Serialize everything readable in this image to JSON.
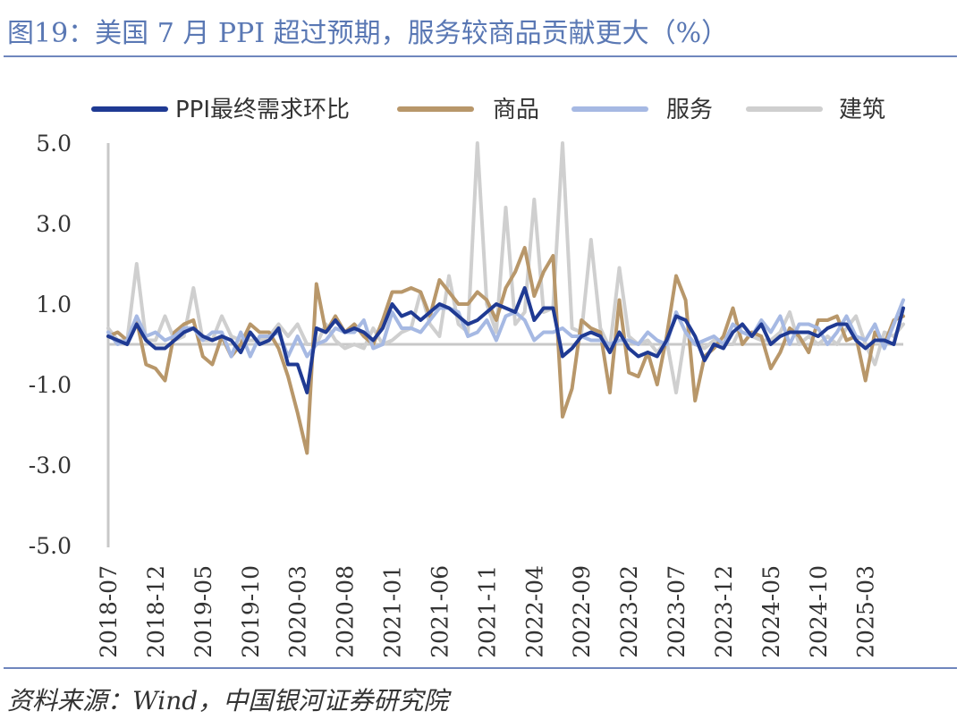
{
  "title": "图19：美国 7 月 PPI 超过预期，服务较商品贡献更大（%）",
  "source": "资料来源：Wind，中国银河证券研究院",
  "chart_data": {
    "type": "line",
    "title": "图19：美国 7 月 PPI 超过预期，服务较商品贡献更大（%）",
    "ylim": [
      -5,
      5
    ],
    "yticks": [
      5,
      3,
      1,
      -1,
      -3,
      -5
    ],
    "ytick_labels": [
      "5.0",
      "3.0",
      "1.0",
      "-1.0",
      "-3.0",
      "-5.0"
    ],
    "xtick_labels": [
      "2018-07",
      "2018-12",
      "2019-05",
      "2019-10",
      "2020-03",
      "2020-08",
      "2021-01",
      "2021-06",
      "2021-11",
      "2022-04",
      "2022-09",
      "2023-02",
      "2023-07",
      "2023-12",
      "2024-05",
      "2024-10",
      "2025-03"
    ],
    "legend_position": "top",
    "grid": false,
    "x": [
      "2018-07",
      "2018-08",
      "2018-09",
      "2018-10",
      "2018-11",
      "2018-12",
      "2019-01",
      "2019-02",
      "2019-03",
      "2019-04",
      "2019-05",
      "2019-06",
      "2019-07",
      "2019-08",
      "2019-09",
      "2019-10",
      "2019-11",
      "2019-12",
      "2020-01",
      "2020-02",
      "2020-03",
      "2020-04",
      "2020-05",
      "2020-06",
      "2020-07",
      "2020-08",
      "2020-09",
      "2020-10",
      "2020-11",
      "2020-12",
      "2021-01",
      "2021-02",
      "2021-03",
      "2021-04",
      "2021-05",
      "2021-06",
      "2021-07",
      "2021-08",
      "2021-09",
      "2021-10",
      "2021-11",
      "2021-12",
      "2022-01",
      "2022-02",
      "2022-03",
      "2022-04",
      "2022-05",
      "2022-06",
      "2022-07",
      "2022-08",
      "2022-09",
      "2022-10",
      "2022-11",
      "2022-12",
      "2023-01",
      "2023-02",
      "2023-03",
      "2023-04",
      "2023-05",
      "2023-06",
      "2023-07",
      "2023-08",
      "2023-09",
      "2023-10",
      "2023-11",
      "2023-12",
      "2024-01",
      "2024-02",
      "2024-03",
      "2024-04",
      "2024-05",
      "2024-06",
      "2024-07",
      "2024-08",
      "2024-09",
      "2024-10",
      "2024-11",
      "2024-12",
      "2025-01",
      "2025-02",
      "2025-03",
      "2025-04",
      "2025-05",
      "2025-06",
      "2025-07"
    ],
    "series": [
      {
        "name": "PPI最终需求环比",
        "color": "#1f3a93",
        "width": 4,
        "values": [
          0.2,
          0.1,
          0.0,
          0.5,
          0.1,
          -0.1,
          -0.1,
          0.1,
          0.3,
          0.4,
          0.2,
          0.1,
          0.2,
          0.1,
          -0.2,
          0.3,
          0.0,
          0.1,
          0.4,
          -0.5,
          -0.5,
          -1.2,
          0.4,
          0.3,
          0.6,
          0.3,
          0.4,
          0.3,
          0.1,
          0.4,
          1.0,
          0.7,
          0.8,
          0.6,
          0.8,
          1.0,
          0.9,
          0.7,
          0.5,
          0.6,
          0.8,
          1.0,
          0.9,
          0.8,
          1.4,
          0.6,
          0.9,
          0.9,
          -0.3,
          -0.1,
          0.2,
          0.3,
          0.2,
          -0.2,
          0.3,
          -0.1,
          -0.3,
          -0.2,
          -0.3,
          0.1,
          0.7,
          0.6,
          0.2,
          -0.4,
          0.0,
          -0.1,
          0.3,
          0.5,
          0.2,
          0.5,
          0.0,
          0.2,
          0.3,
          0.3,
          0.3,
          0.2,
          0.4,
          0.5,
          0.5,
          0.1,
          -0.1,
          0.1,
          0.1,
          0.0,
          0.9
        ]
      },
      {
        "name": "商品",
        "color": "#b8976a",
        "width": 4,
        "values": [
          0.2,
          0.3,
          0.1,
          0.6,
          -0.5,
          -0.6,
          -0.9,
          0.3,
          0.5,
          0.6,
          -0.3,
          -0.5,
          0.2,
          -0.3,
          0.0,
          0.5,
          0.3,
          0.3,
          -0.1,
          -0.8,
          -1.7,
          -2.7,
          1.5,
          0.3,
          0.7,
          0.3,
          0.5,
          0.2,
          0.0,
          0.6,
          1.3,
          1.3,
          1.4,
          1.3,
          0.7,
          1.6,
          1.3,
          1.0,
          1.0,
          1.3,
          1.1,
          0.6,
          1.4,
          1.8,
          2.4,
          1.2,
          1.8,
          2.2,
          -1.8,
          -1.1,
          0.6,
          0.4,
          0.3,
          -1.2,
          1.1,
          -0.7,
          -0.8,
          -0.2,
          -1.0,
          0.2,
          1.7,
          1.1,
          -1.4,
          -0.3,
          -0.1,
          0.2,
          0.9,
          0.0,
          0.3,
          0.2,
          -0.6,
          -0.2,
          0.4,
          0.2,
          -0.2,
          0.6,
          0.6,
          0.7,
          0.1,
          0.2,
          -0.9,
          0.3,
          0.0,
          0.6,
          0.7
        ]
      },
      {
        "name": "服务",
        "color": "#a6b9e3",
        "width": 4,
        "values": [
          0.3,
          0.0,
          0.1,
          0.7,
          0.2,
          0.3,
          0.1,
          0.2,
          0.4,
          0.4,
          0.1,
          0.3,
          0.3,
          -0.3,
          0.3,
          -0.3,
          0.2,
          0.2,
          0.3,
          -0.3,
          0.2,
          -0.3,
          0.0,
          0.1,
          0.4,
          0.3,
          0.3,
          0.6,
          -0.1,
          0.0,
          0.8,
          0.4,
          0.4,
          0.3,
          0.6,
          0.9,
          0.9,
          0.8,
          0.2,
          0.3,
          0.6,
          0.1,
          0.7,
          0.8,
          0.6,
          0.1,
          0.3,
          0.3,
          0.4,
          0.2,
          0.2,
          0.1,
          0.1,
          0.0,
          0.1,
          0.1,
          0.0,
          0.3,
          0.1,
          0.0,
          0.8,
          0.3,
          0.0,
          0.1,
          0.2,
          0.0,
          0.5,
          0.3,
          0.2,
          0.6,
          0.3,
          0.7,
          0.0,
          0.5,
          0.5,
          0.4,
          0.0,
          0.3,
          0.7,
          0.2,
          0.1,
          0.5,
          -0.1,
          0.5,
          1.1
        ]
      },
      {
        "name": "建筑",
        "color": "#cfcfcf",
        "width": 4,
        "values": [
          0.4,
          0.1,
          0.1,
          2.0,
          0.1,
          0.1,
          0.7,
          0.1,
          0.2,
          1.4,
          0.1,
          0.1,
          0.7,
          0.2,
          0.1,
          0.1,
          0.1,
          0.2,
          0.5,
          0.2,
          0.5,
          0.0,
          0.0,
          0.5,
          0.1,
          -0.1,
          0.0,
          -0.1,
          0.4,
          0.0,
          0.1,
          0.3,
          0.4,
          1.3,
          0.5,
          0.2,
          1.7,
          0.5,
          0.3,
          5.0,
          1.0,
          0.3,
          3.4,
          0.5,
          0.8,
          3.6,
          0.8,
          0.9,
          5.0,
          0.4,
          0.3,
          2.6,
          0.4,
          -0.1,
          1.9,
          0.2,
          0.0,
          0.1,
          -0.2,
          0.1,
          -1.2,
          0.3,
          0.0,
          -0.1,
          0.1,
          0.0,
          0.0,
          0.5,
          0.2,
          0.1,
          0.1,
          0.3,
          0.8,
          0.0,
          0.2,
          0.0,
          0.2,
          0.0,
          0.4,
          0.7,
          0.0,
          -0.5,
          0.3,
          0.2,
          0.5
        ]
      }
    ]
  }
}
